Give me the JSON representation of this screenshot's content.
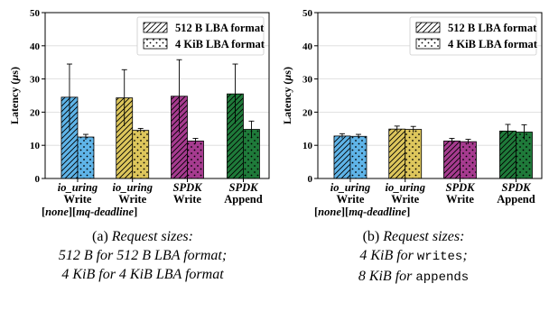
{
  "colors": {
    "io_uring_none": "#5fb4e8",
    "io_uring_mq_deadline": "#ddc65c",
    "spdk_write": "#a63b8f",
    "spdk_append": "#1f7a3a"
  },
  "chart_data": [
    {
      "id": "a",
      "type": "bar",
      "ylabel": "Latency (µs)",
      "ylim": [
        0,
        50
      ],
      "yticks": [
        0,
        10,
        20,
        30,
        40,
        50
      ],
      "grid": true,
      "legend_position": "top-right",
      "groups": [
        {
          "line1": "io_uring",
          "line2": "Write",
          "color_key": "io_uring_none"
        },
        {
          "line1": "io_uring",
          "line2": "Write",
          "color_key": "io_uring_mq_deadline"
        },
        {
          "line1": "SPDK",
          "line2": "Write",
          "color_key": "spdk_write"
        },
        {
          "line1": "SPDK",
          "line2": "Append",
          "color_key": "spdk_append"
        }
      ],
      "scheduler_note": [
        "[",
        "none",
        "][",
        "mq-deadline",
        "]"
      ],
      "series": [
        {
          "name": "512 B LBA format",
          "pattern": "hatch",
          "values": [
            24.5,
            24.3,
            24.8,
            25.5
          ],
          "errors": [
            10.0,
            8.5,
            11.0,
            9.0
          ]
        },
        {
          "name": "4 KiB LBA format",
          "pattern": "dots",
          "values": [
            12.5,
            14.5,
            11.3,
            14.8
          ],
          "errors": [
            0.8,
            0.6,
            0.8,
            2.5
          ]
        }
      ],
      "caption": {
        "prefix": "(a)",
        "line1": "Request sizes:",
        "line2": "512 B for 512 B LBA format;",
        "line3": "4 KiB for 4 KiB LBA format"
      }
    },
    {
      "id": "b",
      "type": "bar",
      "ylabel": "Latency (µs)",
      "ylim": [
        0,
        50
      ],
      "yticks": [
        0,
        10,
        20,
        30,
        40,
        50
      ],
      "grid": true,
      "legend_position": "top-right",
      "groups": [
        {
          "line1": "io_uring",
          "line2": "Write",
          "color_key": "io_uring_none"
        },
        {
          "line1": "io_uring",
          "line2": "Write",
          "color_key": "io_uring_mq_deadline"
        },
        {
          "line1": "SPDK",
          "line2": "Write",
          "color_key": "spdk_write"
        },
        {
          "line1": "SPDK",
          "line2": "Append",
          "color_key": "spdk_append"
        }
      ],
      "scheduler_note": [
        "[",
        "none",
        "][",
        "mq-deadline",
        "]"
      ],
      "series": [
        {
          "name": "512 B LBA format",
          "pattern": "hatch",
          "values": [
            12.8,
            14.9,
            11.3,
            14.3
          ],
          "errors": [
            0.7,
            0.9,
            0.8,
            2.0
          ]
        },
        {
          "name": "4 KiB LBA format",
          "pattern": "dots",
          "values": [
            12.7,
            14.8,
            11.1,
            14.0
          ],
          "errors": [
            0.6,
            0.9,
            0.7,
            2.2
          ]
        }
      ],
      "caption": {
        "prefix": "(b)",
        "line1": "Request sizes:",
        "line2a": "4 KiB for ",
        "line2b": "writes",
        "line2c": ";",
        "line3a": "8 KiB for ",
        "line3b": "appends"
      }
    }
  ]
}
